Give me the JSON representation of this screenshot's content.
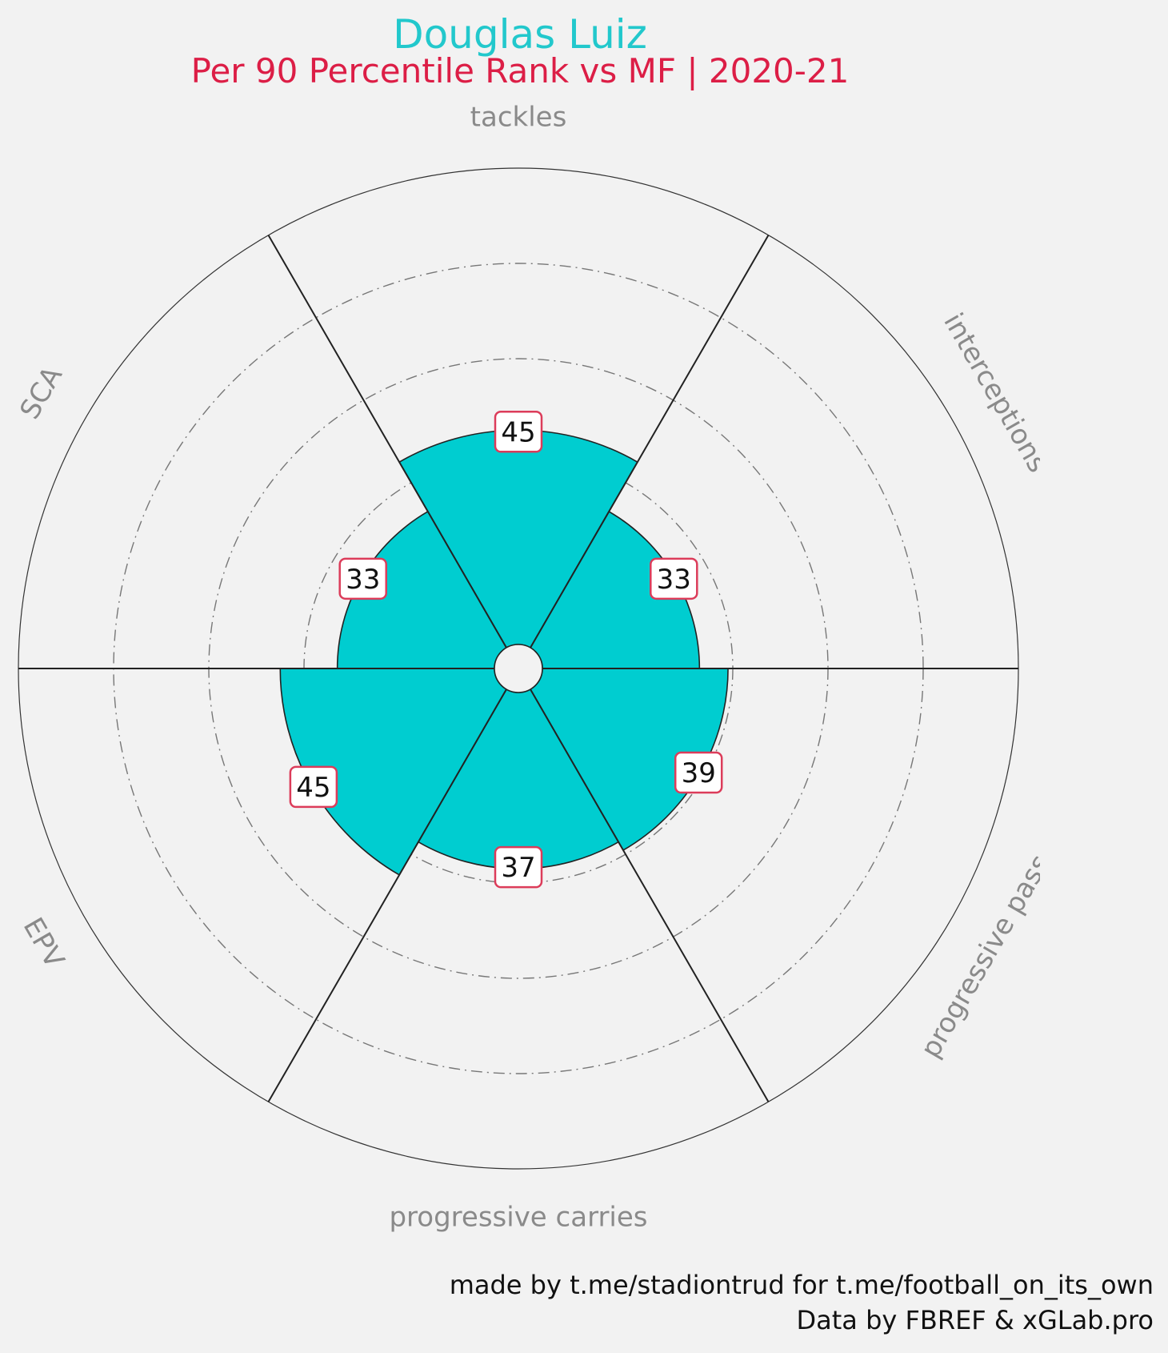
{
  "colors": {
    "background": "#f2f2f2",
    "fill": "#00cdd0",
    "title": "#22c8cc",
    "subtitle": "#dc1e46",
    "label_border": "#dc3c5a",
    "category_text": "#8a8a8a"
  },
  "header": {
    "player_name": "Douglas Luiz",
    "subtitle": "Per 90 Percentile Rank vs MF | 2020-21"
  },
  "footer": {
    "credit": "made by t.me/stadiontrud for t.me/football_on_its_own",
    "source": "Data by FBREF & xGLab.pro"
  },
  "chart_data": {
    "type": "polar-bar",
    "title": "Douglas Luiz",
    "subtitle": "Per 90 Percentile Rank vs MF | 2020-21",
    "categories": [
      "tackles",
      "interceptions",
      "progressive passes",
      "progressive carries",
      "EPV",
      "SCA"
    ],
    "values": [
      45,
      33,
      39,
      37,
      45,
      33
    ],
    "rlim": [
      0,
      100
    ],
    "grid_rings": [
      20,
      40,
      60,
      80,
      100
    ],
    "data_labels": true
  }
}
